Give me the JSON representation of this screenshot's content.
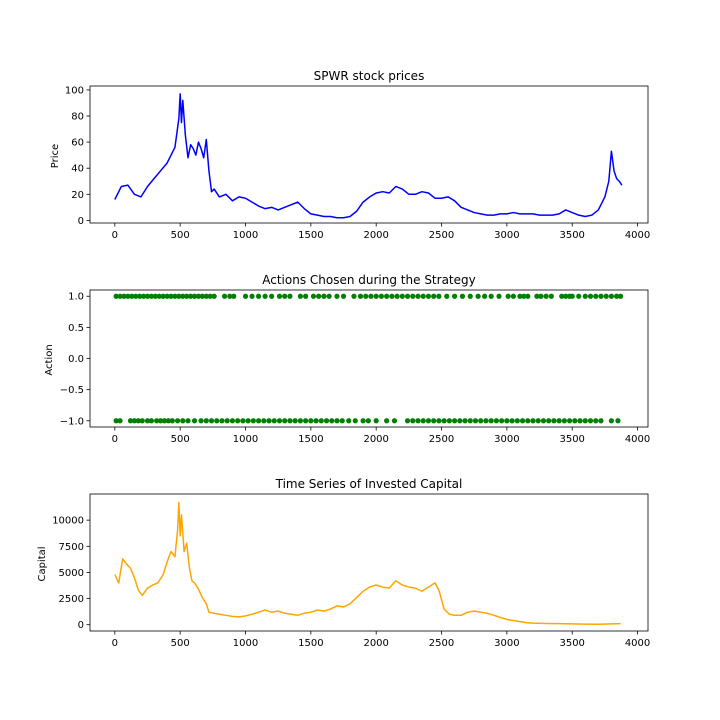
{
  "chart_data": [
    {
      "type": "line",
      "title": "SPWR stock prices",
      "xlabel": "",
      "ylabel": "Price",
      "xlim": [
        -190,
        4080
      ],
      "ylim": [
        -2,
        103
      ],
      "xticks": [
        0,
        500,
        1000,
        1500,
        2000,
        2500,
        3000,
        3500,
        4000
      ],
      "xtick_labels": [
        "0",
        "500",
        "1000",
        "1500",
        "2000",
        "2500",
        "3000",
        "3500",
        "4000"
      ],
      "yticks": [
        0,
        20,
        40,
        60,
        80,
        100
      ],
      "ytick_labels": [
        "0",
        "20",
        "40",
        "60",
        "80",
        "100"
      ],
      "color": "#0000ff",
      "grid": false,
      "series": [
        {
          "x": [
            0,
            50,
            100,
            150,
            200,
            250,
            300,
            350,
            400,
            430,
            460,
            490,
            500,
            510,
            520,
            540,
            560,
            580,
            600,
            620,
            640,
            660,
            680,
            700,
            720,
            740,
            760,
            800,
            850,
            900,
            950,
            1000,
            1050,
            1100,
            1150,
            1200,
            1250,
            1300,
            1350,
            1400,
            1450,
            1500,
            1550,
            1600,
            1650,
            1700,
            1750,
            1800,
            1850,
            1900,
            1950,
            2000,
            2050,
            2100,
            2150,
            2200,
            2250,
            2300,
            2350,
            2400,
            2450,
            2500,
            2550,
            2600,
            2650,
            2700,
            2750,
            2800,
            2850,
            2900,
            2950,
            3000,
            3050,
            3100,
            3150,
            3200,
            3250,
            3300,
            3350,
            3400,
            3450,
            3500,
            3550,
            3600,
            3650,
            3700,
            3750,
            3780,
            3800,
            3820,
            3840,
            3860,
            3880
          ],
          "y": [
            16,
            26,
            27,
            20,
            18,
            26,
            32,
            38,
            44,
            50,
            56,
            78,
            97,
            75,
            92,
            65,
            48,
            58,
            55,
            50,
            60,
            55,
            48,
            62,
            38,
            22,
            24,
            18,
            20,
            15,
            18,
            17,
            14,
            11,
            9,
            10,
            8,
            10,
            12,
            14,
            9,
            5,
            4,
            3,
            3,
            2,
            2,
            3,
            7,
            14,
            18,
            21,
            22,
            21,
            26,
            24,
            20,
            20,
            22,
            21,
            17,
            17,
            18,
            15,
            10,
            8,
            6,
            5,
            4,
            4,
            5,
            5,
            6,
            5,
            5,
            5,
            4,
            4,
            4,
            5,
            8,
            6,
            4,
            3,
            4,
            8,
            18,
            30,
            53,
            38,
            32,
            30,
            27
          ]
        }
      ]
    },
    {
      "type": "scatter",
      "title": "Actions Chosen during the Strategy",
      "xlabel": "",
      "ylabel": "Action",
      "xlim": [
        -190,
        4080
      ],
      "ylim": [
        -1.1,
        1.1
      ],
      "xticks": [
        0,
        500,
        1000,
        1500,
        2000,
        2500,
        3000,
        3500,
        4000
      ],
      "xtick_labels": [
        "0",
        "500",
        "1000",
        "1500",
        "2000",
        "2500",
        "3000",
        "3500",
        "4000"
      ],
      "yticks": [
        -1.0,
        -0.5,
        0.0,
        0.5,
        1.0
      ],
      "ytick_labels": [
        "−1.0",
        "−0.5",
        "0.0",
        "0.5",
        "1.0"
      ],
      "color": "#008000",
      "grid": false,
      "series": [
        {
          "x": [
            10,
            40,
            70,
            100,
            130,
            160,
            190,
            220,
            250,
            280,
            310,
            340,
            370,
            400,
            430,
            460,
            490,
            520,
            550,
            580,
            610,
            640,
            670,
            700,
            730,
            760,
            840,
            880,
            910,
            1000,
            1050,
            1100,
            1150,
            1200,
            1260,
            1300,
            1340,
            1420,
            1460,
            1520,
            1560,
            1600,
            1640,
            1700,
            1750,
            1830,
            1880,
            1920,
            1960,
            2000,
            2040,
            2080,
            2120,
            2160,
            2200,
            2240,
            2280,
            2320,
            2360,
            2400,
            2440,
            2480,
            2540,
            2600,
            2660,
            2720,
            2780,
            2830,
            2880,
            2940,
            3010,
            3050,
            3100,
            3130,
            3160,
            3230,
            3260,
            3300,
            3340,
            3420,
            3450,
            3480,
            3500,
            3550,
            3600,
            3640,
            3680,
            3720,
            3760,
            3800,
            3840,
            3870
          ],
          "y": [
            1,
            1,
            1,
            1,
            1,
            1,
            1,
            1,
            1,
            1,
            1,
            1,
            1,
            1,
            1,
            1,
            1,
            1,
            1,
            1,
            1,
            1,
            1,
            1,
            1,
            1,
            1,
            1,
            1,
            1,
            1,
            1,
            1,
            1,
            1,
            1,
            1,
            1,
            1,
            1,
            1,
            1,
            1,
            1,
            1,
            1,
            1,
            1,
            1,
            1,
            1,
            1,
            1,
            1,
            1,
            1,
            1,
            1,
            1,
            1,
            1,
            1,
            1,
            1,
            1,
            1,
            1,
            1,
            1,
            1,
            1,
            1,
            1,
            1,
            1,
            1,
            1,
            1,
            1,
            1,
            1,
            1,
            1,
            1,
            1,
            1,
            1,
            1,
            1,
            1,
            1,
            1
          ]
        },
        {
          "x": [
            10,
            40,
            120,
            150,
            180,
            210,
            250,
            280,
            320,
            350,
            380,
            410,
            440,
            480,
            520,
            560,
            610,
            660,
            700,
            740,
            780,
            820,
            860,
            900,
            940,
            980,
            1020,
            1060,
            1100,
            1140,
            1180,
            1220,
            1260,
            1300,
            1340,
            1380,
            1420,
            1460,
            1500,
            1540,
            1580,
            1620,
            1660,
            1700,
            1740,
            1790,
            1840,
            1900,
            1940,
            2000,
            2080,
            2140,
            2240,
            2280,
            2320,
            2360,
            2400,
            2440,
            2480,
            2520,
            2560,
            2600,
            2640,
            2680,
            2720,
            2760,
            2800,
            2840,
            2880,
            2920,
            2960,
            3000,
            3040,
            3080,
            3120,
            3160,
            3200,
            3240,
            3280,
            3320,
            3360,
            3400,
            3440,
            3480,
            3520,
            3560,
            3600,
            3640,
            3680,
            3720,
            3800,
            3850
          ],
          "y": [
            -1,
            -1,
            -1,
            -1,
            -1,
            -1,
            -1,
            -1,
            -1,
            -1,
            -1,
            -1,
            -1,
            -1,
            -1,
            -1,
            -1,
            -1,
            -1,
            -1,
            -1,
            -1,
            -1,
            -1,
            -1,
            -1,
            -1,
            -1,
            -1,
            -1,
            -1,
            -1,
            -1,
            -1,
            -1,
            -1,
            -1,
            -1,
            -1,
            -1,
            -1,
            -1,
            -1,
            -1,
            -1,
            -1,
            -1,
            -1,
            -1,
            -1,
            -1,
            -1,
            -1,
            -1,
            -1,
            -1,
            -1,
            -1,
            -1,
            -1,
            -1,
            -1,
            -1,
            -1,
            -1,
            -1,
            -1,
            -1,
            -1,
            -1,
            -1,
            -1,
            -1,
            -1,
            -1,
            -1,
            -1,
            -1,
            -1,
            -1,
            -1,
            -1,
            -1,
            -1,
            -1,
            -1,
            -1,
            -1,
            -1,
            -1,
            -1,
            -1
          ]
        }
      ]
    },
    {
      "type": "line",
      "title": "Time Series of Invested Capital",
      "xlabel": "",
      "ylabel": "Capital",
      "xlim": [
        -190,
        4080
      ],
      "ylim": [
        -600,
        12500
      ],
      "xticks": [
        0,
        500,
        1000,
        1500,
        2000,
        2500,
        3000,
        3500,
        4000
      ],
      "xtick_labels": [
        "0",
        "500",
        "1000",
        "1500",
        "2000",
        "2500",
        "3000",
        "3500",
        "4000"
      ],
      "yticks": [
        0,
        2500,
        5000,
        7500,
        10000
      ],
      "ytick_labels": [
        "0",
        "2500",
        "5000",
        "7500",
        "10000"
      ],
      "color": "#ffa500",
      "grid": false,
      "series": [
        {
          "x": [
            0,
            30,
            60,
            90,
            120,
            150,
            180,
            210,
            250,
            290,
            330,
            370,
            400,
            430,
            460,
            480,
            490,
            500,
            510,
            530,
            550,
            570,
            590,
            610,
            640,
            670,
            700,
            720,
            760,
            800,
            850,
            900,
            950,
            1000,
            1050,
            1100,
            1150,
            1200,
            1250,
            1300,
            1350,
            1400,
            1450,
            1500,
            1550,
            1600,
            1650,
            1700,
            1750,
            1800,
            1850,
            1900,
            1950,
            2000,
            2050,
            2100,
            2150,
            2200,
            2250,
            2300,
            2350,
            2400,
            2450,
            2480,
            2520,
            2560,
            2600,
            2650,
            2700,
            2750,
            2800,
            2850,
            2900,
            2950,
            3000,
            3050,
            3100,
            3150,
            3200,
            3300,
            3400,
            3500,
            3600,
            3700,
            3800,
            3870
          ],
          "y": [
            4800,
            4000,
            6300,
            5800,
            5400,
            4500,
            3300,
            2800,
            3500,
            3800,
            4000,
            4800,
            6000,
            7000,
            6500,
            9000,
            11700,
            8500,
            10500,
            7000,
            7800,
            5500,
            4200,
            4000,
            3400,
            2600,
            2000,
            1200,
            1100,
            1000,
            900,
            800,
            750,
            850,
            1000,
            1200,
            1400,
            1200,
            1300,
            1100,
            1000,
            900,
            1100,
            1200,
            1400,
            1300,
            1500,
            1800,
            1700,
            2000,
            2600,
            3200,
            3600,
            3800,
            3600,
            3500,
            4200,
            3800,
            3600,
            3500,
            3200,
            3600,
            4000,
            3300,
            1500,
            1000,
            900,
            900,
            1200,
            1300,
            1200,
            1100,
            900,
            700,
            500,
            400,
            300,
            200,
            150,
            120,
            100,
            80,
            60,
            40,
            80,
            100
          ]
        }
      ]
    }
  ]
}
